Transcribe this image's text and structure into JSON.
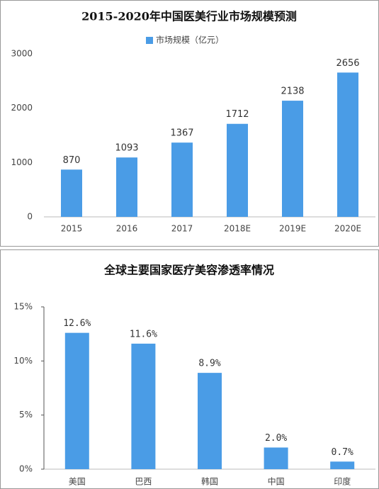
{
  "chart_data": [
    {
      "type": "bar",
      "title": "2015-2020年中国医美行业市场规模预测",
      "categories": [
        "2015",
        "2016",
        "2017",
        "2018E",
        "2019E",
        "2020E"
      ],
      "series": [
        {
          "name": "市场规模（亿元）",
          "color": "#4a9ce6",
          "values": [
            870,
            1093,
            1367,
            1712,
            2138,
            2656
          ]
        }
      ],
      "ylim": [
        0,
        3000
      ],
      "yticks": [
        0,
        1000,
        2000,
        3000
      ],
      "grid": false,
      "legend": "top"
    },
    {
      "type": "bar",
      "title": "全球主要国家医疗美容渗透率情况",
      "categories": [
        "美国",
        "巴西",
        "韩国",
        "中国",
        "印度"
      ],
      "values": [
        12.6,
        11.6,
        8.9,
        2.0,
        0.7
      ],
      "value_labels": [
        "12.6%",
        "11.6%",
        "8.9%",
        "2.0%",
        "0.7%"
      ],
      "color": "#4a9ce6",
      "ylim": [
        0,
        15
      ],
      "yticks": [
        {
          "value": 0,
          "label": "0%"
        },
        {
          "value": 5,
          "label": "5%"
        },
        {
          "value": 10,
          "label": "10%"
        },
        {
          "value": 15,
          "label": "15%"
        }
      ],
      "grid": false
    }
  ]
}
